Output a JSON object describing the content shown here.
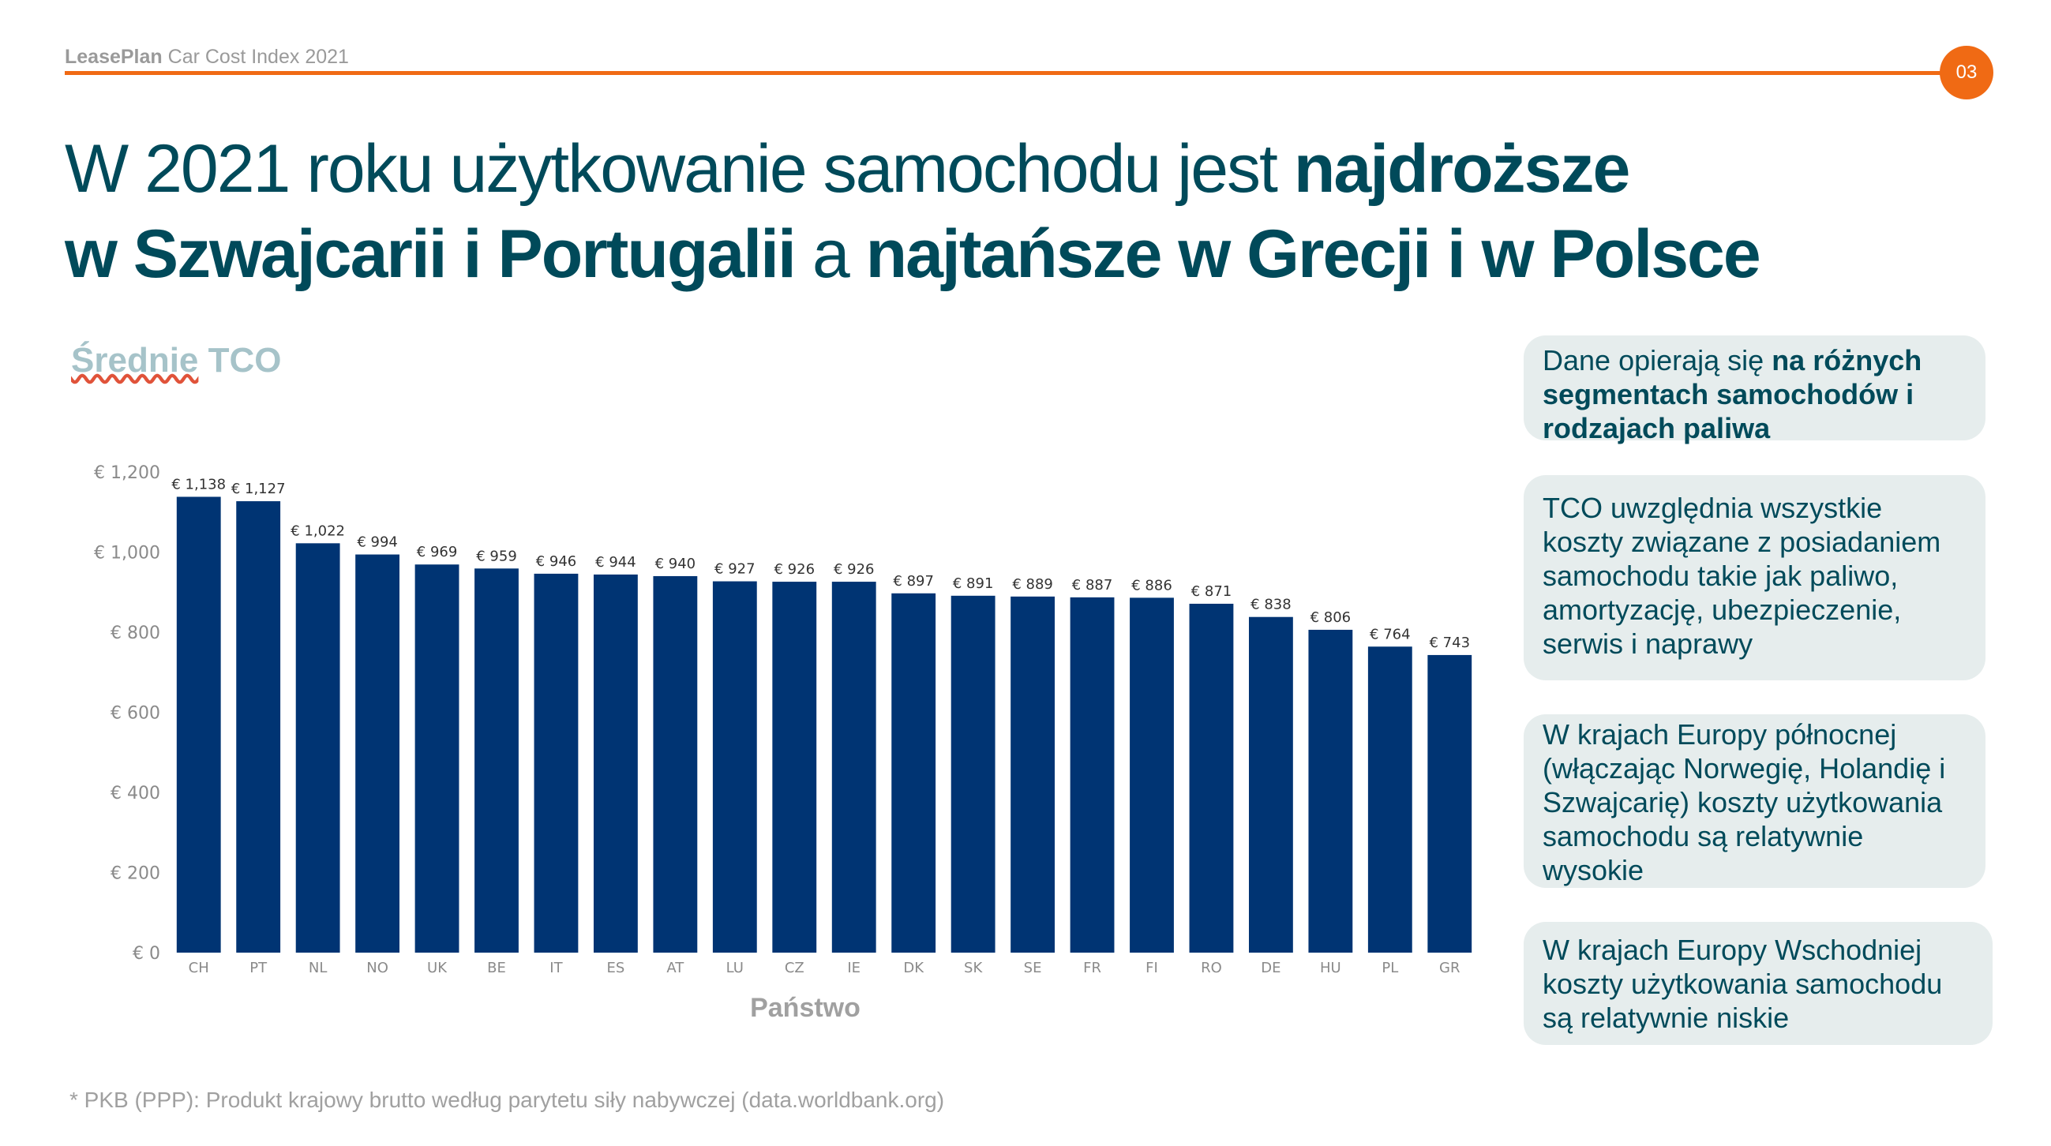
{
  "header": {
    "brand_bold": "LeasePlan",
    "brand_rest": " Car Cost Index 2021",
    "page_number": "03"
  },
  "title": {
    "line1_regular": "W 2021 roku użytkowanie samochodu jest ",
    "line1_bold": "najdroższe",
    "line2_bold1": "w Szwajcarii i Portugalii",
    "line2_regular": " a ",
    "line2_bold2": "najtańsze w Grecji i w Polsce"
  },
  "chart_heading": {
    "word1": "Średnie",
    "word2": " TCO"
  },
  "chart_data": {
    "type": "bar",
    "categories": [
      "CH",
      "PT",
      "NL",
      "NO",
      "UK",
      "BE",
      "IT",
      "ES",
      "AT",
      "LU",
      "CZ",
      "IE",
      "DK",
      "SK",
      "SE",
      "FR",
      "FI",
      "RO",
      "DE",
      "HU",
      "PL",
      "GR"
    ],
    "values": [
      1138,
      1127,
      1022,
      994,
      969,
      959,
      946,
      944,
      940,
      927,
      926,
      926,
      897,
      891,
      889,
      887,
      886,
      871,
      838,
      806,
      764,
      743
    ],
    "value_labels": [
      "€ 1,138",
      "€ 1,127",
      "€ 1,022",
      "€ 994",
      "€ 969",
      "€ 959",
      "€ 946",
      "€ 944",
      "€ 940",
      "€ 927",
      "€ 926",
      "€ 926",
      "€ 897",
      "€ 891",
      "€ 889",
      "€ 887",
      "€ 886",
      "€ 871",
      "€ 838",
      "€ 806",
      "€ 764",
      "€ 743"
    ],
    "y_ticks": [
      0,
      200,
      400,
      600,
      800,
      1000,
      1200
    ],
    "y_tick_labels": [
      "€ 0",
      "€ 200",
      "€ 400",
      "€ 600",
      "€ 800",
      "€ 1,000",
      "€ 1,200"
    ],
    "ylim": [
      0,
      1200
    ],
    "xlabel": "Państwo",
    "ylabel": "",
    "bar_color": "#003473",
    "grid": false
  },
  "info_boxes": [
    {
      "regular": "Dane opierają się ",
      "bold": "na różnych segmentach samochodów i rodzajach paliwa"
    },
    {
      "regular": "TCO uwzględnia wszystkie koszty związane z posiadaniem samochodu takie jak paliwo, amortyzację, ubezpieczenie, serwis i naprawy",
      "bold": ""
    },
    {
      "regular": "W krajach Europy północnej (włączając Norwegię, Holandię i Szwajcarię) koszty użytkowania samochodu są relatywnie wysokie",
      "bold": ""
    },
    {
      "regular": "W krajach Europy Wschodniej koszty użytkowania samochodu są relatywnie niskie",
      "bold": ""
    }
  ],
  "footnote": "* PKB (PPP): Produkt krajowy brutto według parytetu siły nabywczej (data.worldbank.org)",
  "colors": {
    "accent_orange": "#f06a14",
    "title_teal": "#004a5a",
    "box_bg": "#e6eded"
  }
}
